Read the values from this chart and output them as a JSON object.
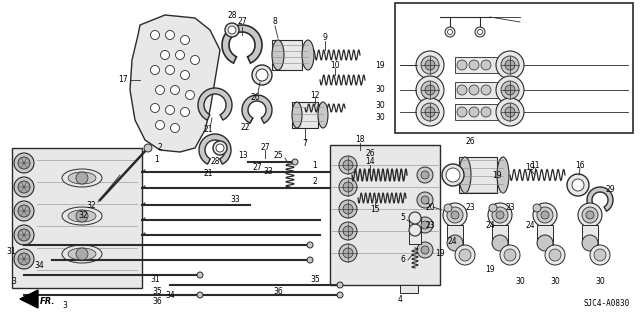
{
  "diagram_code": "SJC4-A0830",
  "background_color": "#ffffff",
  "line_color": "#2a2a2a",
  "text_color": "#000000",
  "figsize": [
    6.4,
    3.19
  ],
  "dpi": 100,
  "gray_fill": "#c8c8c8",
  "dark_gray": "#888888",
  "light_gray": "#e8e8e8",
  "mid_gray": "#aaaaaa"
}
